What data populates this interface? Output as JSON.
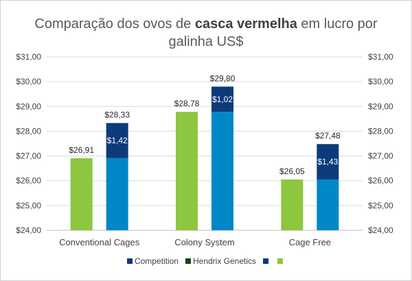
{
  "chart_data": {
    "type": "bar",
    "title_pre": "Comparação dos ovos de ",
    "title_bold": "casca vermelha",
    "title_post": " em lucro por galinha US$",
    "categories": [
      "Conventional Cages",
      "Colony System",
      "Cage Free"
    ],
    "ylim": [
      24,
      31
    ],
    "yticks": [
      "$24,00",
      "$25,00",
      "$26,00",
      "$27,00",
      "$28,00",
      "$29,00",
      "$30,00",
      "$31,00"
    ],
    "grid": true,
    "legend_position": "bottom",
    "series": [
      {
        "name": "",
        "values": [
          26.91,
          28.78,
          26.05
        ],
        "labels": [
          "$26,91",
          "$28,78",
          "$26,05"
        ],
        "color": "#8dc63f"
      },
      {
        "name": "Competition",
        "values": [
          26.91,
          28.78,
          26.05
        ],
        "color": "#0087c8"
      },
      {
        "name": "",
        "values": [
          1.42,
          1.02,
          1.43
        ],
        "labels": [
          "$1,42",
          "$1,02",
          "$1,43"
        ],
        "color": "#0d3b7a"
      }
    ],
    "totals": {
      "values": [
        28.33,
        29.8,
        27.48
      ],
      "labels": [
        "$28,33",
        "$29,80",
        "$27,48"
      ]
    },
    "legend": [
      {
        "label": "Competition",
        "color": "#0d3b7a"
      },
      {
        "label": "Hendrix Genetics",
        "color": "#1a4020"
      },
      {
        "label": "",
        "color": "#0d3b7a"
      },
      {
        "label": "",
        "color": "#8dc63f"
      }
    ]
  }
}
